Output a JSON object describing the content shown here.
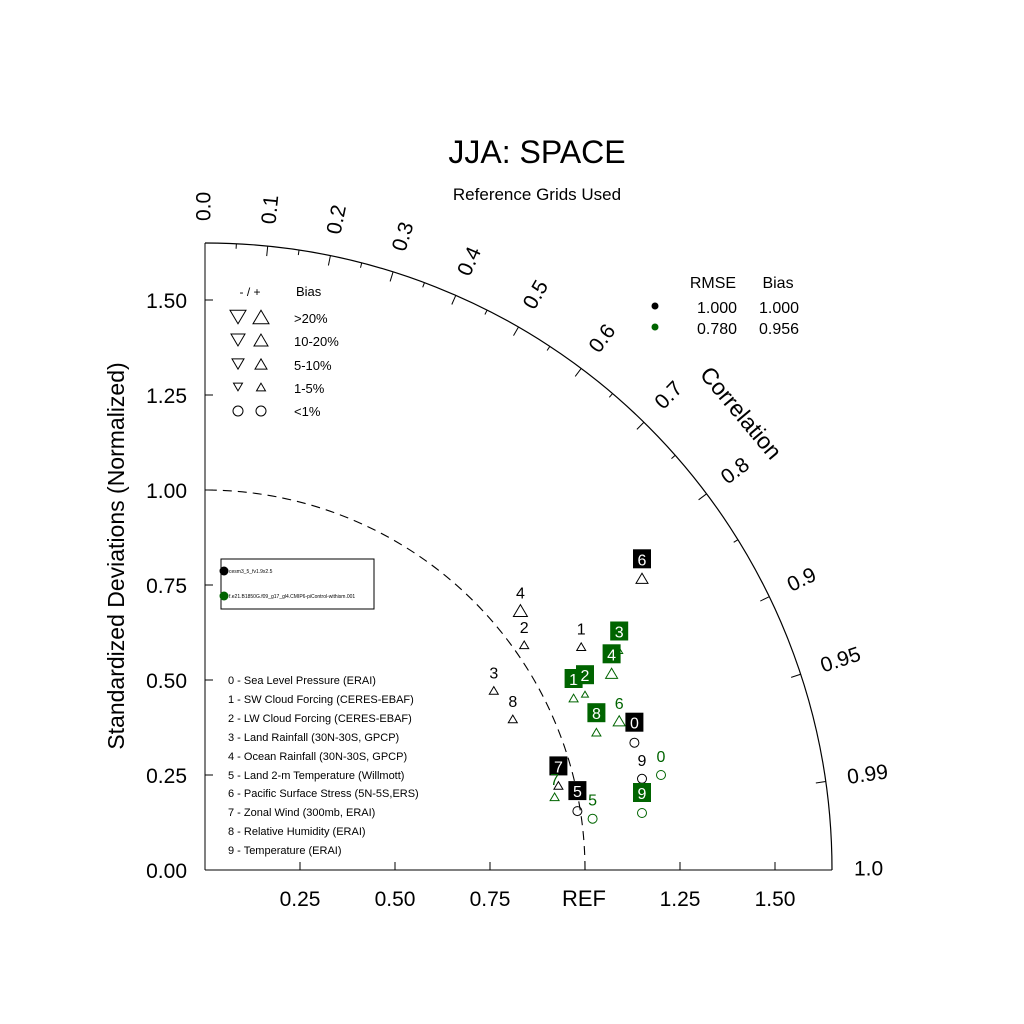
{
  "chart_data": {
    "type": "scatter",
    "title": "JJA: SPACE",
    "subtitle": "Reference Grids Used",
    "ylabel": "Standardized Deviations (Normalized)",
    "correlation_label": "Correlation",
    "ref_label": "REF",
    "ylim": [
      0,
      1.65
    ],
    "xlim": [
      0,
      1.65
    ],
    "y_ticks": [
      "0.00",
      "0.25",
      "0.50",
      "0.75",
      "1.00",
      "1.25",
      "1.50"
    ],
    "x_ticks": [
      "0.25",
      "0.50",
      "0.75",
      "1.25",
      "1.50"
    ],
    "correlation_ticks": [
      "0.0",
      "0.1",
      "0.2",
      "0.3",
      "0.4",
      "0.5",
      "0.6",
      "0.7",
      "0.8",
      "0.9",
      "0.95",
      "0.99",
      "1.0"
    ],
    "colors": {
      "case1": "#000000",
      "case2": "#006400",
      "frame": "#000000"
    },
    "bias_legend": {
      "header_sign": "- / +",
      "header_bias": "Bias",
      "rows": [
        ">20%",
        "10-20%",
        "5-10%",
        "1-5%",
        "<1%"
      ]
    },
    "rmse_table": {
      "headers": [
        "RMSE",
        "Bias"
      ],
      "rows": [
        {
          "rmse": "1.000",
          "bias": "1.000",
          "color": "#000000"
        },
        {
          "rmse": "0.780",
          "bias": "0.956",
          "color": "#006400"
        }
      ]
    },
    "cases": [
      {
        "name": "cesm3_5_fv1.9x2.5",
        "color": "#000000"
      },
      {
        "name": "f.e21.B1850G.f09_g17_gl4.CMIP6-piControl-withism.001",
        "color": "#006400"
      }
    ],
    "variables": [
      "0 - Sea Level Pressure (ERAI)",
      "1 - SW Cloud Forcing (CERES-EBAF)",
      "2 - LW Cloud Forcing (CERES-EBAF)",
      "3 - Land Rainfall (30N-30S, GPCP)",
      "4 - Ocean Rainfall (30N-30S, GPCP)",
      "5 - Land 2-m Temperature (Willmott)",
      "6 - Pacific Surface Stress (5N-5S,ERS)",
      "7 - Zonal Wind (300mb, ERAI)",
      "8 - Relative Humidity (ERAI)",
      "9 - Temperature (ERAI)"
    ],
    "series": [
      {
        "name": "cesm3_5_fv1.9x2.5",
        "color": "#000000",
        "points": [
          {
            "label": "0",
            "x": 1.13,
            "y": 0.335,
            "marker": "circle",
            "boxed": true
          },
          {
            "label": "1",
            "x": 0.99,
            "y": 0.585,
            "marker": "triangle-up-small",
            "boxed": false
          },
          {
            "label": "2",
            "x": 0.84,
            "y": 0.59,
            "marker": "triangle-up-small",
            "boxed": false
          },
          {
            "label": "3",
            "x": 0.76,
            "y": 0.47,
            "marker": "triangle-up-small",
            "boxed": false
          },
          {
            "label": "4",
            "x": 0.83,
            "y": 0.68,
            "marker": "triangle-up-large",
            "boxed": false
          },
          {
            "label": "5",
            "x": 0.98,
            "y": 0.155,
            "marker": "circle",
            "boxed": true
          },
          {
            "label": "6",
            "x": 1.15,
            "y": 0.765,
            "marker": "triangle-up-medium",
            "boxed": true
          },
          {
            "label": "7",
            "x": 0.93,
            "y": 0.22,
            "marker": "triangle-up-small",
            "boxed": true
          },
          {
            "label": "8",
            "x": 0.81,
            "y": 0.395,
            "marker": "triangle-up-small",
            "boxed": false
          },
          {
            "label": "9",
            "x": 1.15,
            "y": 0.24,
            "marker": "circle",
            "boxed": false
          }
        ]
      },
      {
        "name": "f.e21.B1850G.f09_g17_gl4.CMIP6-piControl-withism.001",
        "color": "#006400",
        "points": [
          {
            "label": "0",
            "x": 1.2,
            "y": 0.25,
            "marker": "circle",
            "boxed": false
          },
          {
            "label": "1",
            "x": 0.97,
            "y": 0.45,
            "marker": "triangle-up-small",
            "boxed": true
          },
          {
            "label": "2",
            "x": 1.0,
            "y": 0.46,
            "marker": "triangle-up-tiny",
            "boxed": true
          },
          {
            "label": "3",
            "x": 1.09,
            "y": 0.575,
            "marker": "triangle-up-tiny",
            "boxed": true
          },
          {
            "label": "4",
            "x": 1.07,
            "y": 0.515,
            "marker": "triangle-up-medium",
            "boxed": true
          },
          {
            "label": "5",
            "x": 1.02,
            "y": 0.135,
            "marker": "circle",
            "boxed": false
          },
          {
            "label": "6",
            "x": 1.09,
            "y": 0.39,
            "marker": "triangle-up-medium",
            "boxed": false
          },
          {
            "label": "7",
            "x": 0.92,
            "y": 0.19,
            "marker": "triangle-up-small",
            "boxed": false
          },
          {
            "label": "8",
            "x": 1.03,
            "y": 0.36,
            "marker": "triangle-up-small",
            "boxed": true
          },
          {
            "label": "9",
            "x": 1.15,
            "y": 0.15,
            "marker": "circle",
            "boxed": true
          }
        ]
      }
    ]
  }
}
